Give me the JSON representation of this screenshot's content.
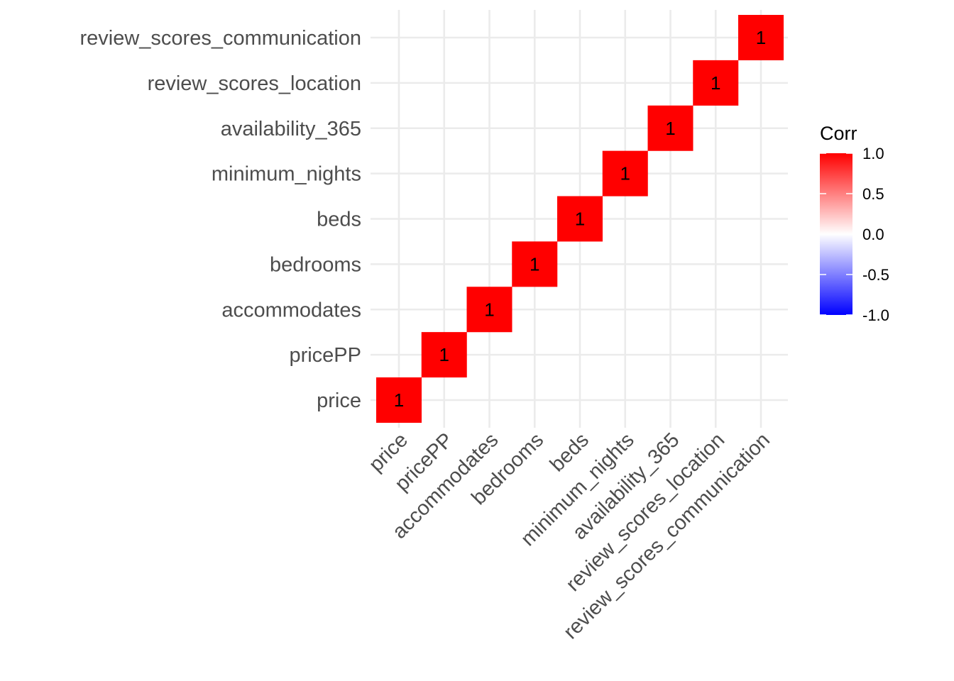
{
  "chart_data": {
    "type": "heatmap",
    "x_labels": [
      "price",
      "pricePP",
      "accommodates",
      "bedrooms",
      "beds",
      "minimum_nights",
      "availability_365",
      "review_scores_location",
      "review_scores_communication"
    ],
    "y_labels": [
      "price",
      "pricePP",
      "accommodates",
      "bedrooms",
      "beds",
      "minimum_nights",
      "availability_365",
      "review_scores_location",
      "review_scores_communication"
    ],
    "cells": [
      {
        "x": "price",
        "y": "price",
        "value": 1,
        "label": "1"
      },
      {
        "x": "pricePP",
        "y": "pricePP",
        "value": 1,
        "label": "1"
      },
      {
        "x": "accommodates",
        "y": "accommodates",
        "value": 1,
        "label": "1"
      },
      {
        "x": "bedrooms",
        "y": "bedrooms",
        "value": 1,
        "label": "1"
      },
      {
        "x": "beds",
        "y": "beds",
        "value": 1,
        "label": "1"
      },
      {
        "x": "minimum_nights",
        "y": "minimum_nights",
        "value": 1,
        "label": "1"
      },
      {
        "x": "availability_365",
        "y": "availability_365",
        "value": 1,
        "label": "1"
      },
      {
        "x": "review_scores_location",
        "y": "review_scores_location",
        "value": 1,
        "label": "1"
      },
      {
        "x": "review_scores_communication",
        "y": "review_scores_communication",
        "value": 1,
        "label": "1"
      }
    ],
    "legend": {
      "title": "Corr",
      "range": [
        -1,
        1
      ],
      "ticks": [
        "1.0",
        "0.5",
        "0.0",
        "-0.5",
        "-1.0"
      ],
      "colors": {
        "low": "#0000ff",
        "mid": "#ffffff",
        "high": "#ff0000"
      },
      "placement": "right"
    },
    "grid": true,
    "colors": {
      "grid": "#ebebeb",
      "background": "#ffffff"
    }
  }
}
